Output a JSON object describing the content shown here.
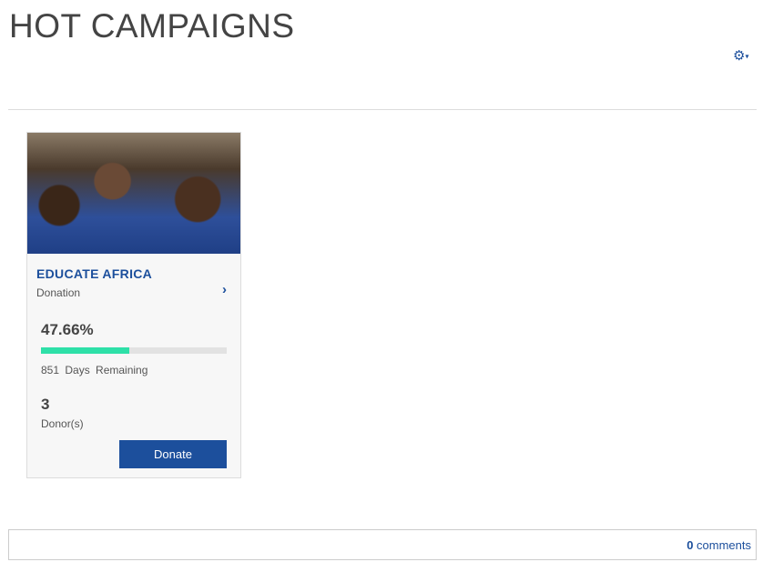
{
  "header": {
    "title": "HOT CAMPAIGNS",
    "settings_icon": "gear-icon",
    "caret_icon": "caret-down-icon",
    "caret": "▾",
    "gear": "⚙"
  },
  "campaign": {
    "name": "EDUCATE AFRICA",
    "type": "Donation",
    "percent_label": "47.66%",
    "progress": 47.66,
    "days_remaining": "851 Days Remaining",
    "donors_count": "3",
    "donors_label": "Donor(s)",
    "donate_label": "Donate",
    "chevron": "›",
    "colors": {
      "accent": "#1c4f9c",
      "progress": "#2ee0a8"
    }
  },
  "footer": {
    "comments_count": "0",
    "comments_label": " comments"
  }
}
